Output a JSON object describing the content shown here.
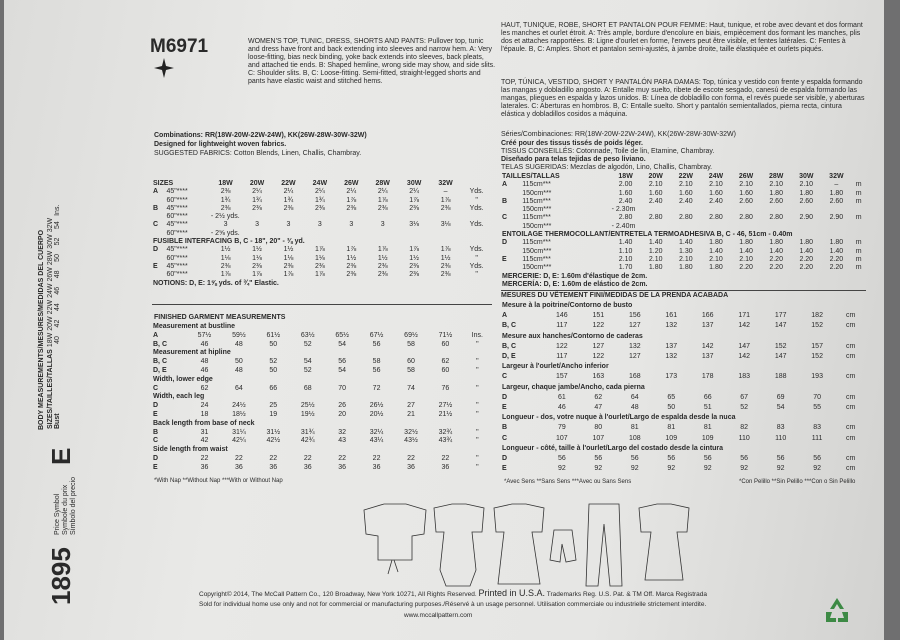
{
  "strip": {
    "price": "1895",
    "price_symbol": [
      "Price Symbol",
      "Symbole du prix",
      "Símbolo del precio"
    ],
    "letter": "E",
    "body_title": "BODY MEASUREMENTS/MESURES/MEDIDAS DEL CUERPO",
    "sizes_label": "SIZES/TAILLES/TALLAS",
    "sizes": [
      "18W",
      "20W",
      "22W",
      "24W",
      "26W",
      "28W",
      "30W",
      "32W"
    ],
    "bust_label": "Bust",
    "bust": [
      "40",
      "42",
      "44",
      "46",
      "48",
      "50",
      "52",
      "54"
    ],
    "unit": "Ins."
  },
  "left": {
    "code": "M6971",
    "description": "WOMEN'S TOP, TUNIC, DRESS, SHORTS AND PANTS: Pullover top, tunic and dress have front and back extending into sleeves and narrow hem. A: Very loose-fitting, bias neck binding, yoke back extends into sleeves, back pleats, and attached tie ends. B: Shaped hemline, wrong side may show, and side slits. C: Shoulder slits. B, C: Loose-fitting. Semi-fitted, straight-legged shorts and pants have elastic waist and stitched hems.",
    "combinations": "Combinations: RR(18W-20W-22W-24W), KK(26W-28W-30W-32W)",
    "designed": "Designed for lightweight woven fabrics.",
    "fabrics": "SUGGESTED FABRICS: Cotton Blends, Linen, Challis, Chambray.",
    "yardage": {
      "header_label": "SIZES",
      "sizes": [
        "18W",
        "20W",
        "22W",
        "24W",
        "26W",
        "28W",
        "30W",
        "32W"
      ],
      "rows": [
        {
          "label": "A",
          "cells": [
            "45\"****",
            "2⅜",
            "2¼",
            "2¼",
            "2¼",
            "2¼",
            "2¼",
            "2¼",
            "–",
            "Yds."
          ]
        },
        {
          "cells": [
            "60\"****",
            "1¾",
            "1¾",
            "1¾",
            "1¾",
            "1⅞",
            "1⅞",
            "1⅞",
            "1⅞",
            "\""
          ]
        },
        {
          "label": "B",
          "cells": [
            "45\"****",
            "2⅜",
            "2⅜",
            "2⅜",
            "2⅜",
            "2⅜",
            "2⅜",
            "2⅜",
            "2⅜",
            "Yds."
          ]
        },
        {
          "cells": [
            "60\"****",
            "- 2½ yds."
          ]
        },
        {
          "label": "C",
          "cells": [
            "45\"****",
            "3",
            "3",
            "3",
            "3",
            "3",
            "3",
            "3⅛",
            "3⅛",
            "Yds."
          ]
        },
        {
          "cells": [
            "60\"****",
            "- 2⅝ yds."
          ]
        },
        {
          "heading": "FUSIBLE INTERFACING B, C - 18\", 20\" - ⅜ yd."
        },
        {
          "label": "D",
          "cells": [
            "45\"****",
            "1½",
            "1½",
            "1½",
            "1⅞",
            "1⅞",
            "1⅞",
            "1⅞",
            "1⅞",
            "Yds."
          ]
        },
        {
          "cells": [
            "60\"****",
            "1⅛",
            "1⅛",
            "1⅛",
            "1⅛",
            "1½",
            "1½",
            "1½",
            "1½",
            "\""
          ]
        },
        {
          "label": "E",
          "cells": [
            "45\"****",
            "2⅜",
            "2⅜",
            "2⅜",
            "2⅜",
            "2⅜",
            "2⅜",
            "2⅜",
            "2⅜",
            "Yds."
          ]
        },
        {
          "cells": [
            "60\"****",
            "1⅞",
            "1⅞",
            "1⅞",
            "1⅞",
            "2⅜",
            "2⅜",
            "2⅜",
            "2⅜",
            "\""
          ]
        },
        {
          "heading": "NOTIONS: D, E: 1⅝ yds. of ¾\" Elastic."
        }
      ]
    },
    "finished_title": "FINISHED GARMENT MEASUREMENTS",
    "finished": {
      "rows": [
        {
          "heading": "Measurement at bustline"
        },
        {
          "label": "A",
          "cells": [
            "57½",
            "59½",
            "61½",
            "63½",
            "65½",
            "67½",
            "69½",
            "71½",
            "Ins."
          ]
        },
        {
          "label": "B, C",
          "cells": [
            "46",
            "48",
            "50",
            "52",
            "54",
            "56",
            "58",
            "60",
            "\""
          ]
        },
        {
          "heading": "Measurement at hipline"
        },
        {
          "label": "B, C",
          "cells": [
            "48",
            "50",
            "52",
            "54",
            "56",
            "58",
            "60",
            "62",
            "\""
          ]
        },
        {
          "label": "D, E",
          "cells": [
            "46",
            "48",
            "50",
            "52",
            "54",
            "56",
            "58",
            "60",
            "\""
          ]
        },
        {
          "heading": "Width, lower edge"
        },
        {
          "label": "C",
          "cells": [
            "62",
            "64",
            "66",
            "68",
            "70",
            "72",
            "74",
            "76",
            "\""
          ]
        },
        {
          "heading": "Width, each leg"
        },
        {
          "label": "D",
          "cells": [
            "24",
            "24½",
            "25",
            "25½",
            "26",
            "26½",
            "27",
            "27½",
            "\""
          ]
        },
        {
          "label": "E",
          "cells": [
            "18",
            "18½",
            "19",
            "19½",
            "20",
            "20½",
            "21",
            "21½",
            "\""
          ]
        },
        {
          "heading": "Back length from base of neck"
        },
        {
          "label": "B",
          "cells": [
            "31",
            "31¼",
            "31½",
            "31¾",
            "32",
            "32¼",
            "32½",
            "32¾",
            "\""
          ]
        },
        {
          "label": "C",
          "cells": [
            "42",
            "42¼",
            "42½",
            "42¾",
            "43",
            "43¼",
            "43½",
            "43¾",
            "\""
          ]
        },
        {
          "heading": "Side length from waist"
        },
        {
          "label": "D",
          "cells": [
            "22",
            "22",
            "22",
            "22",
            "22",
            "22",
            "22",
            "22",
            "\""
          ]
        },
        {
          "label": "E",
          "cells": [
            "36",
            "36",
            "36",
            "36",
            "36",
            "36",
            "36",
            "36",
            "\""
          ]
        }
      ]
    },
    "footnote": "*With Nap **Without Nap ***With or Without Nap"
  },
  "right": {
    "french": "HAUT, TUNIQUE, ROBE, SHORT ET PANTALON POUR FEMME: Haut, tunique, et robe avec devant et dos formant les manches et ourlet étroit. A: Très ample, bordure d'encolure en biais, empiècement dos formant les manches, plis dos et attaches rapportées. B: Ligne d'ourlet en forme, l'envers peut être visible, et fentes latérales. C: Fentes à l'épaule. B, C: Amples. Short et pantalon semi-ajustés, à jambe droite, taille élastiquée et ourlets piqués.",
    "spanish": "TOP, TÚNICA, VESTIDO, SHORT Y PANTALÓN PARA DAMAS: Top, túnica y vestido con frente y espalda formando las mangas y dobladillo angosto. A: Entalle muy suelto, ribete de escote sesgado, canesú de espalda formando las mangas, pliegues en espalda y lazos unidos. B: Línea de dobladillo con forma, el revés puede ser visible, y aberturas laterales. C: Aberturas en hombros. B, C: Entalle suelto. Short y pantalón semientallados, pierna recta, cintura elástica y dobladillos cosidos a máquina.",
    "series": "Séries/Combinaciones: RR(18W-20W-22W-24W), KK(26W-28W-30W-32W)",
    "cree": "Créé pour des tissus tissés de poids léger.",
    "tissus": "TISSUS CONSEILLÉS: Cotonnade, Toile de lin, Etamine, Chambray.",
    "disenado": "Diseñado para telas tejidas de peso liviano.",
    "telas": "TELAS SUGERIDAS: Mezclas de algodón, Lino, Challis, Chambray.",
    "yardage": {
      "header_label": "TAILLES/TALLAS",
      "sizes": [
        "18W",
        "20W",
        "22W",
        "24W",
        "26W",
        "28W",
        "30W",
        "32W"
      ],
      "rows": [
        {
          "label": "A",
          "cells": [
            "115cm***",
            "2.00",
            "2.10",
            "2.10",
            "2.10",
            "2.10",
            "2.10",
            "2.10",
            "–",
            "m"
          ]
        },
        {
          "cells": [
            "150cm***",
            "1.60",
            "1.60",
            "1.60",
            "1.60",
            "1.60",
            "1.80",
            "1.80",
            "1.80",
            "m"
          ]
        },
        {
          "label": "B",
          "cells": [
            "115cm***",
            "2.40",
            "2.40",
            "2.40",
            "2.40",
            "2.60",
            "2.60",
            "2.60",
            "2.60",
            "m"
          ]
        },
        {
          "cells": [
            "150cm***",
            "- 2.30m"
          ]
        },
        {
          "label": "C",
          "cells": [
            "115cm***",
            "2.80",
            "2.80",
            "2.80",
            "2.80",
            "2.80",
            "2.80",
            "2.90",
            "2.90",
            "m"
          ]
        },
        {
          "cells": [
            "150cm***",
            "- 2.40m"
          ]
        },
        {
          "heading": "ENTOILAGE THERMOCOLLANT/ENTRETELA TERMOADHESIVA B, C - 46, 51cm - 0.40m"
        },
        {
          "label": "D",
          "cells": [
            "115cm***",
            "1.40",
            "1.40",
            "1.40",
            "1.80",
            "1.80",
            "1.80",
            "1.80",
            "1.80",
            "m"
          ]
        },
        {
          "cells": [
            "150cm***",
            "1.10",
            "1.20",
            "1.30",
            "1.40",
            "1.40",
            "1.40",
            "1.40",
            "1.40",
            "m"
          ]
        },
        {
          "label": "E",
          "cells": [
            "115cm***",
            "2.10",
            "2.10",
            "2.10",
            "2.10",
            "2.10",
            "2.20",
            "2.20",
            "2.20",
            "m"
          ]
        },
        {
          "cells": [
            "150cm***",
            "1.70",
            "1.80",
            "1.80",
            "1.80",
            "2.20",
            "2.20",
            "2.20",
            "2.20",
            "m"
          ]
        },
        {
          "heading": "MERCERIE: D, E: 1.60m d'élastique de 2cm."
        },
        {
          "heading": "MERCERÍA: D, E: 1.60m de elástico de 2cm."
        }
      ]
    },
    "finished_title": "MESURES DU VÊTEMENT FINI/MEDIDAS DE LA PRENDA ACABADA",
    "finished": {
      "rows": [
        {
          "heading": "Mesure à la poitrine/Contorno de busto"
        },
        {
          "label": "A",
          "cells": [
            "146",
            "151",
            "156",
            "161",
            "166",
            "171",
            "177",
            "182",
            "cm"
          ]
        },
        {
          "label": "B, C",
          "cells": [
            "117",
            "122",
            "127",
            "132",
            "137",
            "142",
            "147",
            "152",
            "cm"
          ]
        },
        {
          "heading": "Mesure aux hanches/Contorno de caderas"
        },
        {
          "label": "B, C",
          "cells": [
            "122",
            "127",
            "132",
            "137",
            "142",
            "147",
            "152",
            "157",
            "cm"
          ]
        },
        {
          "label": "D, E",
          "cells": [
            "117",
            "122",
            "127",
            "132",
            "137",
            "142",
            "147",
            "152",
            "cm"
          ]
        },
        {
          "heading": "Largeur à l'ourlet/Ancho inferior"
        },
        {
          "label": "C",
          "cells": [
            "157",
            "163",
            "168",
            "173",
            "178",
            "183",
            "188",
            "193",
            "cm"
          ]
        },
        {
          "heading": "Largeur, chaque jambe/Ancho, cada pierna"
        },
        {
          "label": "D",
          "cells": [
            "61",
            "62",
            "64",
            "65",
            "66",
            "67",
            "69",
            "70",
            "cm"
          ]
        },
        {
          "label": "E",
          "cells": [
            "46",
            "47",
            "48",
            "50",
            "51",
            "52",
            "54",
            "55",
            "cm"
          ]
        },
        {
          "heading": "Longueur - dos, votre nuque à l'ourlet/Largo de espalda desde la nuca"
        },
        {
          "label": "B",
          "cells": [
            "79",
            "80",
            "81",
            "81",
            "81",
            "82",
            "83",
            "83",
            "cm"
          ]
        },
        {
          "label": "C",
          "cells": [
            "107",
            "107",
            "108",
            "109",
            "109",
            "110",
            "110",
            "111",
            "cm"
          ]
        },
        {
          "heading": "Longueur - côté, taille à l'ourlet/Largo del costado desde la cintura"
        },
        {
          "label": "D",
          "cells": [
            "56",
            "56",
            "56",
            "56",
            "56",
            "56",
            "56",
            "56",
            "cm"
          ]
        },
        {
          "label": "E",
          "cells": [
            "92",
            "92",
            "92",
            "92",
            "92",
            "92",
            "92",
            "92",
            "cm"
          ]
        }
      ]
    },
    "footnote_fr": "*Avec Sens **Sans Sens ***Avec ou Sans Sens",
    "footnote_es": "*Con Pelillo **Sin Pelillo ***Con o Sin Pelillo"
  },
  "footer": {
    "copyright": "Copyright© 2014, The McCall Pattern Co., 120 Broadway, New York 10271, All Rights Reserved.",
    "printed": "Printed in U.S.A.",
    "trademarks": "Trademarks Reg. U.S. Pat. & TM Off. Marca Registrada",
    "sold": "Sold for individual home use only and not for commercial or manufacturing purposes./Réservé à un usage personnel. Utilisation commerciale ou industrielle strictement interdite.",
    "url": "www.mccallpattern.com"
  }
}
